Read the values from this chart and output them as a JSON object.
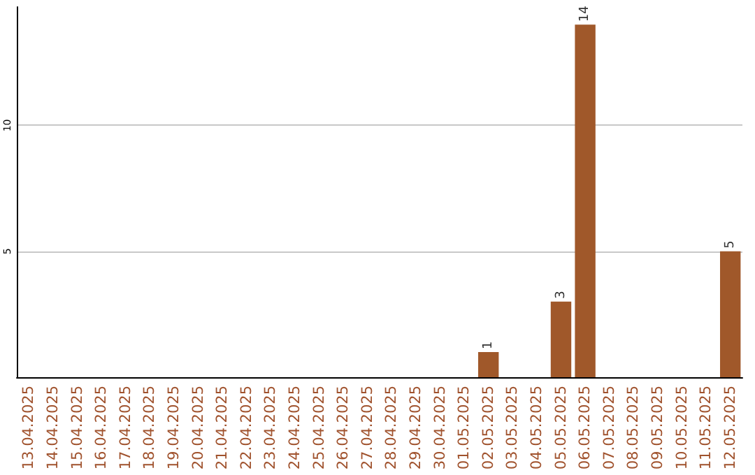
{
  "chart_data": {
    "type": "bar",
    "categories": [
      "13.04.2025",
      "14.04.2025",
      "15.04.2025",
      "16.04.2025",
      "17.04.2025",
      "18.04.2025",
      "19.04.2025",
      "20.04.2025",
      "21.04.2025",
      "22.04.2025",
      "23.04.2025",
      "24.04.2025",
      "25.04.2025",
      "26.04.2025",
      "27.04.2025",
      "28.04.2025",
      "29.04.2025",
      "30.04.2025",
      "01.05.2025",
      "02.05.2025",
      "03.05.2025",
      "04.05.2025",
      "05.05.2025",
      "06.05.2025",
      "07.05.2025",
      "08.05.2025",
      "09.05.2025",
      "10.05.2025",
      "11.05.2025",
      "12.05.2025"
    ],
    "values": [
      0,
      0,
      0,
      0,
      0,
      0,
      0,
      0,
      0,
      0,
      0,
      0,
      0,
      0,
      0,
      0,
      0,
      0,
      0,
      1,
      0,
      0,
      3,
      14,
      0,
      0,
      0,
      0,
      0,
      5
    ],
    "value_labels": [
      null,
      null,
      null,
      null,
      null,
      null,
      null,
      null,
      null,
      null,
      null,
      null,
      null,
      null,
      null,
      null,
      null,
      null,
      null,
      "1",
      null,
      null,
      "3",
      "14",
      null,
      null,
      null,
      null,
      null,
      "5"
    ],
    "color": "#a0582a",
    "ylim": [
      0,
      14.7
    ],
    "yticks": [
      5,
      10
    ],
    "grid": "y"
  }
}
